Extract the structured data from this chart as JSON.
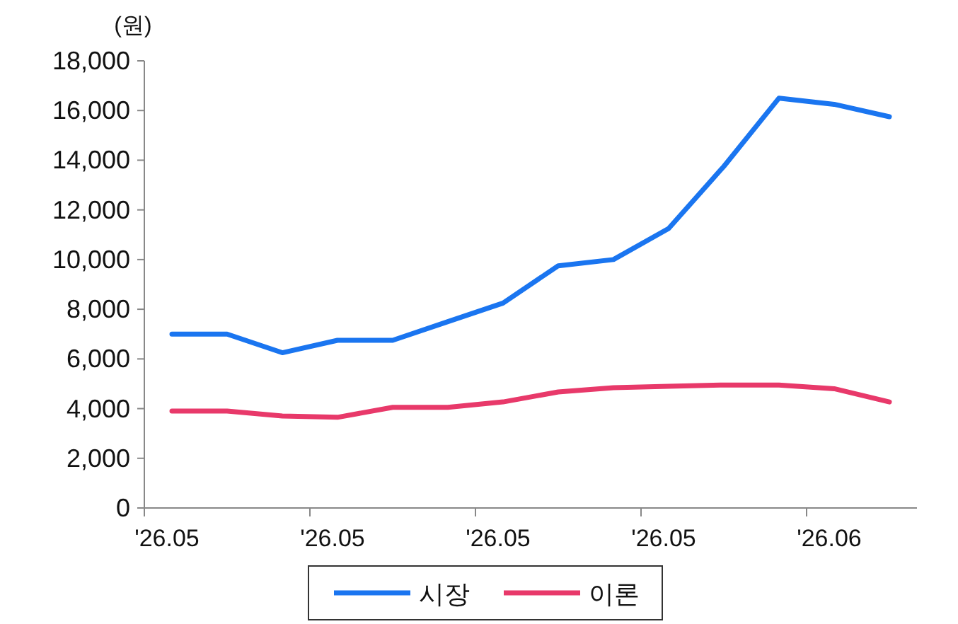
{
  "chart_data": {
    "type": "line",
    "ylabel": "(원)",
    "categories": [
      "'26.05",
      null,
      null,
      "'26.05",
      null,
      null,
      "'26.05",
      null,
      null,
      "'26.05",
      null,
      null,
      "'26.06",
      null
    ],
    "series": [
      {
        "name": "시장",
        "color": "#1a75f0",
        "values": [
          7000,
          7000,
          6250,
          6750,
          6750,
          7500,
          8250,
          9750,
          10000,
          11250,
          13750,
          16500,
          16250,
          15750
        ]
      },
      {
        "name": "이론",
        "color": "#e8396a",
        "values": [
          3900,
          3900,
          3700,
          3650,
          4050,
          4050,
          4270,
          4670,
          4840,
          4900,
          4950,
          4950,
          4800,
          4270
        ]
      }
    ],
    "ylim": [
      0,
      18000
    ],
    "yticks": [
      {
        "value": 0,
        "label": "0"
      },
      {
        "value": 2000,
        "label": "2,000"
      },
      {
        "value": 4000,
        "label": "4,000"
      },
      {
        "value": 6000,
        "label": "6,000"
      },
      {
        "value": 8000,
        "label": "8,000"
      },
      {
        "value": 10000,
        "label": "10,000"
      },
      {
        "value": 12000,
        "label": "12,000"
      },
      {
        "value": 14000,
        "label": "14,000"
      },
      {
        "value": 16000,
        "label": "16,000"
      },
      {
        "value": 18000,
        "label": "18,000"
      }
    ],
    "grid": false,
    "legend": "bottom",
    "marker": "none",
    "line_style": "solid"
  }
}
